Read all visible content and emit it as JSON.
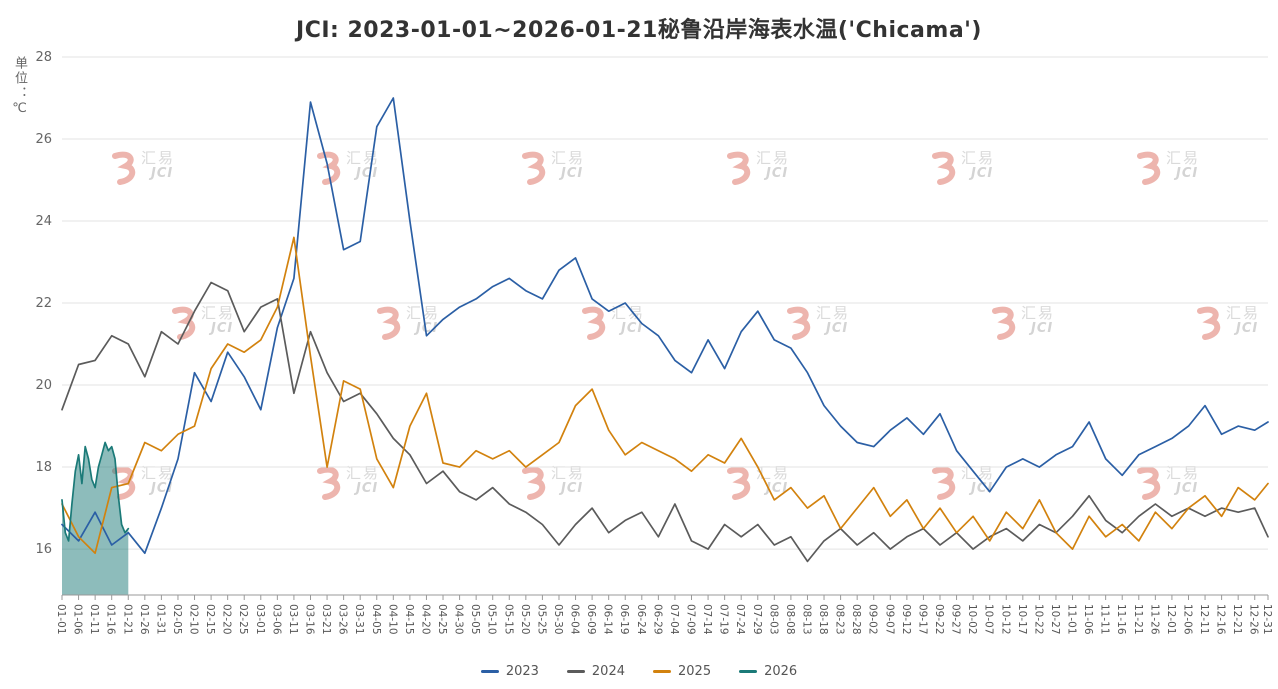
{
  "watermark": {
    "cn": "汇易",
    "en": "JCI"
  },
  "chart_data": {
    "type": "line",
    "title": "JCI: 2023-01-01~2026-01-21秘鲁沿岸海表水温('Chicama')",
    "ylabel": "单位：℃",
    "xlabel": "",
    "ylim": [
      14.88,
      28
    ],
    "y_ticks": [
      16,
      18,
      20,
      22,
      24,
      26,
      28
    ],
    "grid": true,
    "legend_position": "bottom",
    "categories": [
      "01-01",
      "01-06",
      "01-11",
      "01-16",
      "01-21",
      "01-26",
      "01-31",
      "02-05",
      "02-10",
      "02-15",
      "02-20",
      "02-25",
      "03-01",
      "03-06",
      "03-11",
      "03-16",
      "03-21",
      "03-26",
      "03-31",
      "04-05",
      "04-10",
      "04-15",
      "04-20",
      "04-25",
      "04-30",
      "05-05",
      "05-10",
      "05-15",
      "05-20",
      "05-25",
      "05-30",
      "06-04",
      "06-09",
      "06-14",
      "06-19",
      "06-24",
      "06-29",
      "07-04",
      "07-09",
      "07-14",
      "07-19",
      "07-24",
      "07-29",
      "08-03",
      "08-08",
      "08-13",
      "08-18",
      "08-23",
      "08-28",
      "09-02",
      "09-07",
      "09-12",
      "09-17",
      "09-22",
      "09-27",
      "10-02",
      "10-07",
      "10-12",
      "10-17",
      "10-22",
      "10-27",
      "11-01",
      "11-06",
      "11-11",
      "11-16",
      "11-21",
      "11-26",
      "12-01",
      "12-06",
      "12-11",
      "12-16",
      "12-21",
      "12-26",
      "12-31"
    ],
    "series": [
      {
        "name": "2023",
        "color": "#2b5fa5",
        "values": [
          16.6,
          16.2,
          16.9,
          16.1,
          16.4,
          15.9,
          17.0,
          18.2,
          20.3,
          19.6,
          20.8,
          20.2,
          19.4,
          21.4,
          22.6,
          26.9,
          25.4,
          23.3,
          23.5,
          26.3,
          27.0,
          24.0,
          21.2,
          21.6,
          21.9,
          22.1,
          22.4,
          22.6,
          22.3,
          22.1,
          22.8,
          23.1,
          22.1,
          21.8,
          22.0,
          21.5,
          21.2,
          20.6,
          20.3,
          21.1,
          20.4,
          21.3,
          21.8,
          21.1,
          20.9,
          20.3,
          19.5,
          19.0,
          18.6,
          18.5,
          18.9,
          19.2,
          18.8,
          19.3,
          18.4,
          17.9,
          17.4,
          18.0,
          18.2,
          18.0,
          18.3,
          18.5,
          19.1,
          18.2,
          17.8,
          18.3,
          18.5,
          18.7,
          19.0,
          19.5,
          18.8,
          19.0,
          18.9,
          19.1
        ]
      },
      {
        "name": "2024",
        "color": "#5b5b5b",
        "values": [
          19.4,
          20.5,
          20.6,
          21.2,
          21.0,
          20.2,
          21.3,
          21.0,
          21.8,
          22.5,
          22.3,
          21.3,
          21.9,
          22.1,
          19.8,
          21.3,
          20.3,
          19.6,
          19.8,
          19.3,
          18.7,
          18.3,
          17.6,
          17.9,
          17.4,
          17.2,
          17.5,
          17.1,
          16.9,
          16.6,
          16.1,
          16.6,
          17.0,
          16.4,
          16.7,
          16.9,
          16.3,
          17.1,
          16.2,
          16.0,
          16.6,
          16.3,
          16.6,
          16.1,
          16.3,
          15.7,
          16.2,
          16.5,
          16.1,
          16.4,
          16.0,
          16.3,
          16.5,
          16.1,
          16.4,
          16.0,
          16.3,
          16.5,
          16.2,
          16.6,
          16.4,
          16.8,
          17.3,
          16.7,
          16.4,
          16.8,
          17.1,
          16.8,
          17.0,
          16.8,
          17.0,
          16.9,
          17.0,
          16.3
        ]
      },
      {
        "name": "2025",
        "color": "#d2820e",
        "values": [
          17.1,
          16.3,
          15.9,
          17.5,
          17.6,
          18.6,
          18.4,
          18.8,
          19.0,
          20.4,
          21.0,
          20.8,
          21.1,
          21.9,
          23.6,
          20.7,
          18.0,
          20.1,
          19.9,
          18.2,
          17.5,
          19.0,
          19.8,
          18.1,
          18.0,
          18.4,
          18.2,
          18.4,
          18.0,
          18.3,
          18.6,
          19.5,
          19.9,
          18.9,
          18.3,
          18.6,
          18.4,
          18.2,
          17.9,
          18.3,
          18.1,
          18.7,
          18.0,
          17.2,
          17.5,
          17.0,
          17.3,
          16.5,
          17.0,
          17.5,
          16.8,
          17.2,
          16.5,
          17.0,
          16.4,
          16.8,
          16.2,
          16.9,
          16.5,
          17.2,
          16.4,
          16.0,
          16.8,
          16.3,
          16.6,
          16.2,
          16.9,
          16.5,
          17.0,
          17.3,
          16.8,
          17.5,
          17.2,
          17.6
        ]
      },
      {
        "name": "2026",
        "color": "#1b7a78",
        "area": true,
        "x_days": [
          0,
          1,
          2,
          3,
          4,
          5,
          6,
          7,
          8,
          9,
          10,
          11,
          12,
          13,
          14,
          15,
          16,
          17,
          18,
          19,
          20
        ],
        "values": [
          17.2,
          16.4,
          16.2,
          17.1,
          17.9,
          18.3,
          17.6,
          18.5,
          18.2,
          17.7,
          17.5,
          18.0,
          18.3,
          18.6,
          18.4,
          18.5,
          18.2,
          17.3,
          16.6,
          16.4,
          16.5
        ]
      }
    ]
  }
}
